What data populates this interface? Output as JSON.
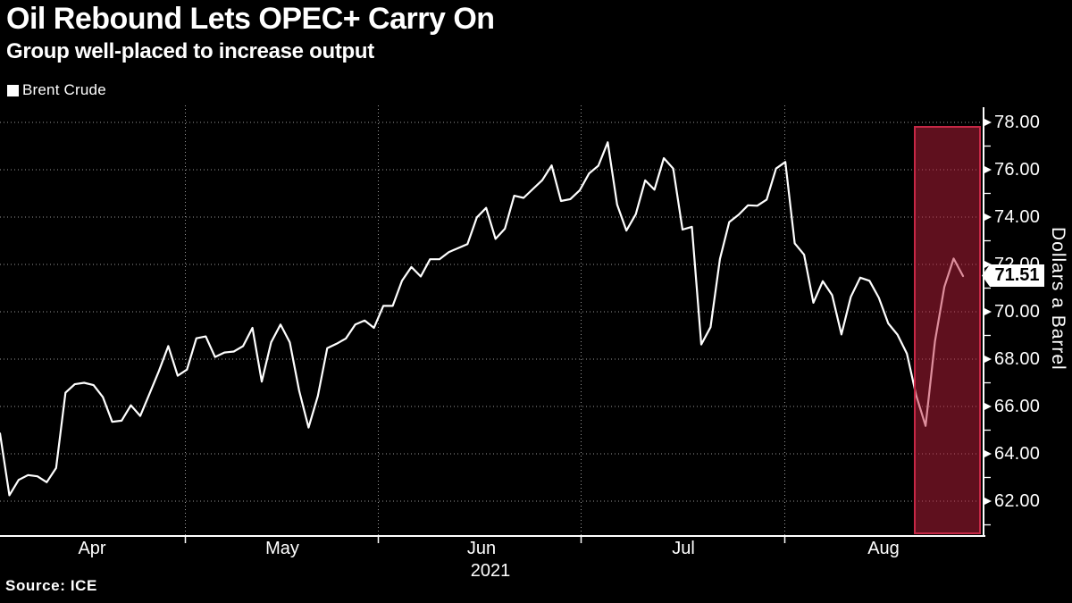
{
  "header": {
    "title": "Oil Rebound Lets OPEC+ Carry On",
    "subtitle": "Group well-placed to increase output"
  },
  "legend": {
    "label": "Brent Crude"
  },
  "source_label": "Source: ICE",
  "price_badge": {
    "value": "71.51"
  },
  "y_axis": {
    "title": "Dollars a Barrel",
    "major_tick_labels": [
      "78.00",
      "76.00",
      "74.00",
      "72.00",
      "70.00",
      "68.00",
      "66.00",
      "64.00",
      "62.00"
    ],
    "major_tick_values": [
      78,
      76,
      74,
      72,
      70,
      68,
      66,
      64,
      62
    ],
    "minor_tick_values": [
      77,
      75,
      73,
      71,
      69,
      67,
      65,
      63,
      61
    ]
  },
  "x_axis": {
    "month_labels": [
      "Apr",
      "May",
      "Jun",
      "Jul",
      "Aug"
    ],
    "year_label": "2021"
  },
  "colors": {
    "background": "#000000",
    "line": "#ffffff",
    "text": "#ffffff",
    "gridline": "rgba(255,255,255,0.6)",
    "axis": "#ffffff",
    "badge_bg": "#ffffff",
    "badge_text": "#000000",
    "highlight_fill": "rgba(190,32,60,0.5)",
    "highlight_border": "#c62846"
  },
  "chart_data": {
    "type": "line",
    "title": "Oil Rebound Lets OPEC+ Carry On",
    "subtitle": "Group well-placed to increase output",
    "ylabel": "Dollars a Barrel",
    "ylim": [
      60.6,
      78.8
    ],
    "grid": true,
    "legend_position": "top-left",
    "x_range": [
      "2021-04-01",
      "2021-08-26"
    ],
    "last_value": 71.51,
    "highlight_region": {
      "start": "2021-08-19",
      "end": "2021-08-31"
    },
    "series": [
      {
        "name": "Brent Crude",
        "unit": "dollars per barrel",
        "dates": [
          "2021-04-01",
          "2021-04-06",
          "2021-04-07",
          "2021-04-08",
          "2021-04-09",
          "2021-04-12",
          "2021-04-13",
          "2021-04-14",
          "2021-04-15",
          "2021-04-16",
          "2021-04-19",
          "2021-04-20",
          "2021-04-21",
          "2021-04-22",
          "2021-04-23",
          "2021-04-26",
          "2021-04-27",
          "2021-04-28",
          "2021-04-29",
          "2021-04-30",
          "2021-05-03",
          "2021-05-04",
          "2021-05-05",
          "2021-05-06",
          "2021-05-07",
          "2021-05-10",
          "2021-05-11",
          "2021-05-12",
          "2021-05-13",
          "2021-05-14",
          "2021-05-17",
          "2021-05-18",
          "2021-05-19",
          "2021-05-20",
          "2021-05-21",
          "2021-05-24",
          "2021-05-25",
          "2021-05-26",
          "2021-05-27",
          "2021-05-28",
          "2021-05-31",
          "2021-06-01",
          "2021-06-02",
          "2021-06-03",
          "2021-06-04",
          "2021-06-07",
          "2021-06-08",
          "2021-06-09",
          "2021-06-10",
          "2021-06-11",
          "2021-06-14",
          "2021-06-15",
          "2021-06-16",
          "2021-06-17",
          "2021-06-18",
          "2021-06-21",
          "2021-06-22",
          "2021-06-23",
          "2021-06-24",
          "2021-06-25",
          "2021-06-28",
          "2021-06-29",
          "2021-06-30",
          "2021-07-01",
          "2021-07-02",
          "2021-07-05",
          "2021-07-06",
          "2021-07-07",
          "2021-07-08",
          "2021-07-09",
          "2021-07-12",
          "2021-07-13",
          "2021-07-14",
          "2021-07-15",
          "2021-07-16",
          "2021-07-19",
          "2021-07-20",
          "2021-07-21",
          "2021-07-22",
          "2021-07-23",
          "2021-07-26",
          "2021-07-27",
          "2021-07-28",
          "2021-07-29",
          "2021-07-30",
          "2021-08-02",
          "2021-08-03",
          "2021-08-04",
          "2021-08-05",
          "2021-08-06",
          "2021-08-09",
          "2021-08-10",
          "2021-08-11",
          "2021-08-12",
          "2021-08-13",
          "2021-08-16",
          "2021-08-17",
          "2021-08-18",
          "2021-08-19",
          "2021-08-20",
          "2021-08-23",
          "2021-08-24",
          "2021-08-25",
          "2021-08-26"
        ],
        "values": [
          64.86,
          62.25,
          62.9,
          63.1,
          63.05,
          62.8,
          63.4,
          66.58,
          66.94,
          67.0,
          66.9,
          66.4,
          65.35,
          65.4,
          66.05,
          65.6,
          66.55,
          67.5,
          68.55,
          67.3,
          67.56,
          68.88,
          68.96,
          68.09,
          68.28,
          68.32,
          68.55,
          69.32,
          67.05,
          68.71,
          69.46,
          68.71,
          66.66,
          65.11,
          66.44,
          68.46,
          68.65,
          68.87,
          69.46,
          69.63,
          69.32,
          70.25,
          70.25,
          71.31,
          71.89,
          71.49,
          72.22,
          72.22,
          72.52,
          72.69,
          72.86,
          73.99,
          74.39,
          73.08,
          73.51,
          74.9,
          74.81,
          75.19,
          75.56,
          76.18,
          74.68,
          74.76,
          75.13,
          75.84,
          76.17,
          77.16,
          74.53,
          73.43,
          74.12,
          75.55,
          75.16,
          76.49,
          76.05,
          73.47,
          73.59,
          68.62,
          69.35,
          72.23,
          73.79,
          74.1,
          74.5,
          74.48,
          74.74,
          76.05,
          76.33,
          72.89,
          72.41,
          70.38,
          71.29,
          70.7,
          69.04,
          70.63,
          71.44,
          71.31,
          70.59,
          69.51,
          69.03,
          68.23,
          66.45,
          65.18,
          68.75,
          71.05,
          72.25,
          71.51
        ]
      }
    ]
  }
}
